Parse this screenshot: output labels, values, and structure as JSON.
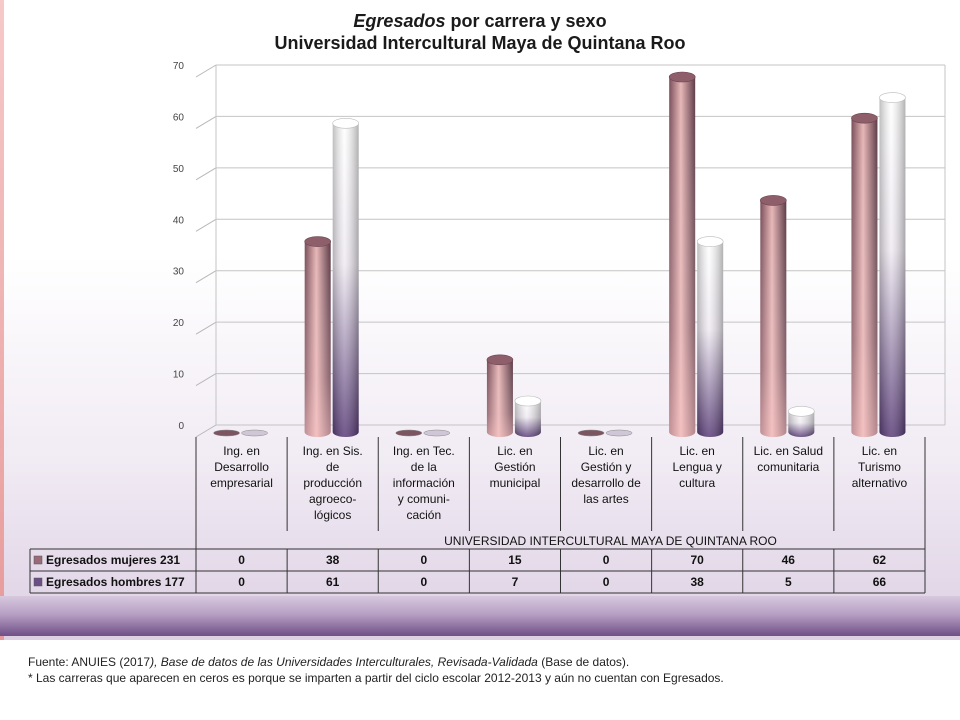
{
  "title": {
    "line1_italic": "Egresados",
    "line1_rest": " por carrera y sexo",
    "line2": "Universidad Intercultural Maya de Quintana Roo"
  },
  "chart_data": {
    "type": "bar",
    "categories": [
      [
        "Ing. en",
        "Desarrollo",
        "empresarial"
      ],
      [
        "Ing. en Sis.",
        "de",
        "producción",
        "agroeco-",
        "lógicos"
      ],
      [
        "Ing. en Tec.",
        "de la",
        "información",
        "y comuni-",
        "cación"
      ],
      [
        "Lic. en",
        "Gestión",
        "municipal"
      ],
      [
        "Lic. en",
        "Gestión y",
        "desarrollo de",
        "las artes"
      ],
      [
        "Lic. en",
        "Lengua y",
        "cultura"
      ],
      [
        "Lic. en Salud",
        "comunitaria"
      ],
      [
        "Lic. en",
        "Turismo",
        "alternativo"
      ]
    ],
    "group_label": "UNIVERSIDAD INTERCULTURAL MAYA DE QUINTANA ROO",
    "series": [
      {
        "name": "Egresados mujeres  231",
        "values": [
          0,
          38,
          0,
          15,
          0,
          70,
          46,
          62
        ],
        "color": "#9a6b78"
      },
      {
        "name": "Egresados  hombres  177",
        "values": [
          0,
          61,
          0,
          7,
          0,
          38,
          5,
          66
        ],
        "color": "#6a4f86"
      }
    ],
    "yticks": [
      0,
      10,
      20,
      30,
      40,
      50,
      60,
      70
    ],
    "ylim": [
      0,
      70
    ],
    "grid": true,
    "legend": "data-table"
  },
  "footer": {
    "source_prefix": "Fuente: ANUIES (2017",
    "source_italic1": "), Base de datos de las Universidades  Interculturales, Revisada-Validada",
    "source_suffix": "  (Base de datos).",
    "note": "* Las carreras que aparecen en ceros es porque  se imparten  a partir del ciclo escolar 2012-2013  y aún no cuentan con Egresados."
  }
}
